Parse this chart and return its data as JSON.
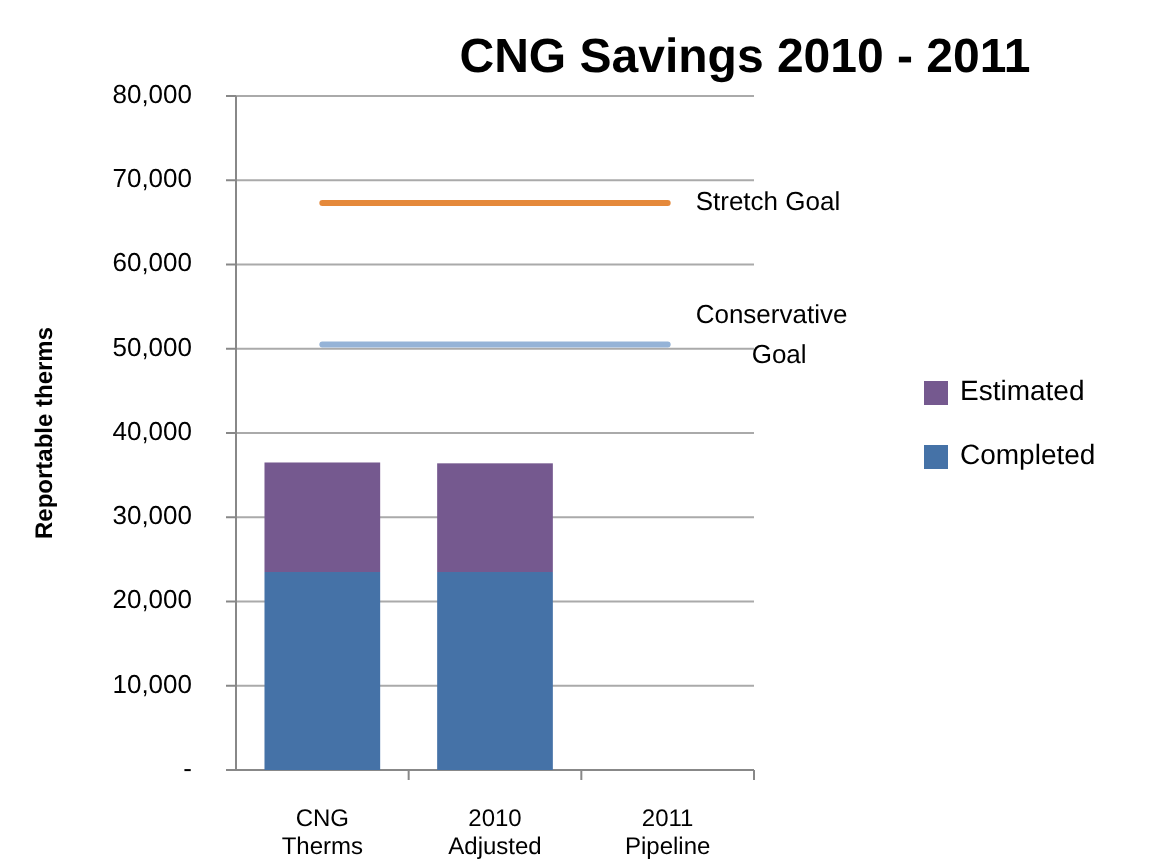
{
  "chart_data": {
    "type": "bar",
    "title": "CNG Savings 2010 - 2011",
    "ylabel": "Reportable therms",
    "categories": [
      "CNG Therms",
      "2010 Adjusted",
      "2011 Pipeline"
    ],
    "stacked": true,
    "ylim": [
      0,
      80000
    ],
    "yticks": [
      {
        "value": 0,
        "label": "-"
      },
      {
        "value": 10000,
        "label": "10,000"
      },
      {
        "value": 20000,
        "label": "20,000"
      },
      {
        "value": 30000,
        "label": "30,000"
      },
      {
        "value": 40000,
        "label": "40,000"
      },
      {
        "value": 50000,
        "label": "50,000"
      },
      {
        "value": 60000,
        "label": "60,000"
      },
      {
        "value": 70000,
        "label": "70,000"
      },
      {
        "value": 80000,
        "label": "80,000"
      }
    ],
    "grid": "y",
    "legend": "right",
    "series": [
      {
        "name": "Completed",
        "color": "#4572a7",
        "values": [
          23500,
          23500,
          null
        ]
      },
      {
        "name": "Estimated",
        "color": "#75598f",
        "values": [
          13000,
          12900,
          null
        ]
      },
      {
        "name": "Stretch Goal",
        "type": "line",
        "color": "#e5893b",
        "values": [
          67300,
          67300,
          67300
        ]
      },
      {
        "name": "Conservative Goal",
        "type": "line",
        "color": "#95b3d7",
        "values": [
          50500,
          50500,
          50500
        ]
      }
    ]
  }
}
